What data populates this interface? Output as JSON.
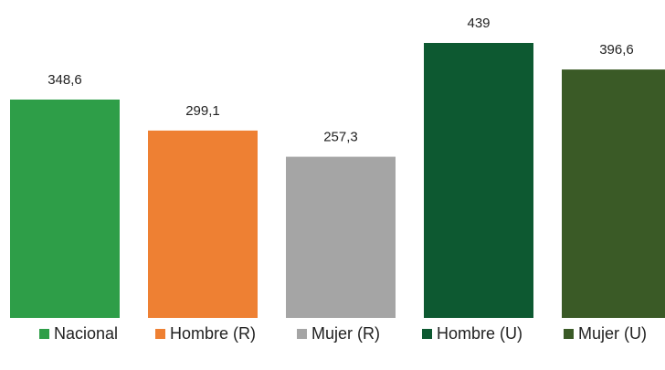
{
  "chart_data": {
    "type": "bar",
    "categories": [
      "Nacional",
      "Hombre (R)",
      "Mujer (R)",
      "Hombre (U)",
      "Mujer (U)"
    ],
    "values": [
      348.6,
      299.1,
      257.3,
      439,
      396.6
    ],
    "value_labels": [
      "348,6",
      "299,1",
      "257,3",
      "439",
      "396,6"
    ],
    "colors": [
      "#2e9e48",
      "#ee8033",
      "#a5a5a5",
      "#0d5931",
      "#3a5a26"
    ],
    "ylim": [
      0,
      439
    ],
    "grid": false,
    "legend_position": "bottom"
  }
}
